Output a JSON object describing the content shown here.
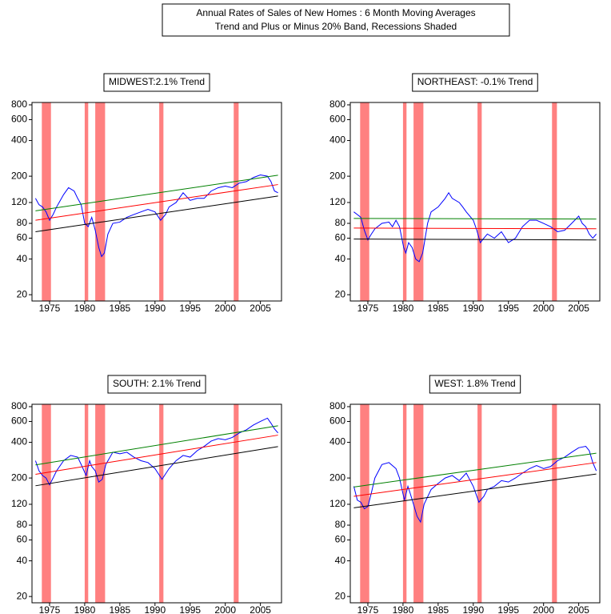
{
  "title": "Annual Rates of Sales of New Homes : 6 Month Moving Averages",
  "subtitle": "Trend and Plus or Minus 20% Band, Recessions Shaded",
  "chart_data": [
    {
      "type": "line",
      "title": "MIDWEST:2.1% Trend",
      "log_y": true,
      "xlim": [
        1972.5,
        2008
      ],
      "ylim": [
        17.7,
        838
      ],
      "xticks": [
        1975,
        1980,
        1985,
        1990,
        1995,
        2000,
        2005
      ],
      "yticks": [
        20,
        40,
        60,
        80,
        120,
        200,
        400,
        600,
        800
      ],
      "recession_color": "#ff8080",
      "recessions": [
        [
          1973.9,
          1975.2
        ],
        [
          1980.0,
          1980.5
        ],
        [
          1981.5,
          1982.9
        ],
        [
          1990.6,
          1991.2
        ],
        [
          2001.2,
          2001.9
        ]
      ],
      "series": [
        {
          "color": "#0000ff",
          "x": [
            1973,
            1973.5,
            1974,
            1974.5,
            1975,
            1975.5,
            1976,
            1977,
            1977.7,
            1978.5,
            1979,
            1979.5,
            1980,
            1980.5,
            1981,
            1981.5,
            1982,
            1982.4,
            1982.8,
            1983.3,
            1984,
            1985,
            1986,
            1987,
            1988,
            1989,
            1990,
            1990.8,
            1991.5,
            1992,
            1993,
            1994,
            1995,
            1996,
            1997,
            1998,
            1999,
            2000,
            2001,
            2002,
            2003,
            2004,
            2005,
            2006,
            2006.5,
            2007,
            2007.5
          ],
          "values": [
            130,
            115,
            110,
            100,
            85,
            95,
            110,
            140,
            160,
            150,
            130,
            115,
            80,
            75,
            90,
            70,
            50,
            42,
            45,
            65,
            80,
            82,
            90,
            95,
            100,
            105,
            100,
            85,
            95,
            110,
            120,
            145,
            125,
            130,
            130,
            150,
            160,
            165,
            160,
            175,
            180,
            195,
            205,
            200,
            180,
            150,
            145
          ]
        },
        {
          "color": "#008000",
          "x": [
            1973,
            2007.5
          ],
          "values": [
            102,
            204
          ]
        },
        {
          "color": "#ff0000",
          "x": [
            1973,
            2007.5
          ],
          "values": [
            85,
            170
          ]
        },
        {
          "color": "#000000",
          "x": [
            1973,
            2007.5
          ],
          "values": [
            68,
            136
          ]
        }
      ]
    },
    {
      "type": "line",
      "title": "NORTHEAST: -0.1% Trend",
      "log_y": true,
      "xlim": [
        1972.5,
        2008
      ],
      "ylim": [
        17.7,
        838
      ],
      "xticks": [
        1975,
        1980,
        1985,
        1990,
        1995,
        2000,
        2005
      ],
      "yticks": [
        20,
        40,
        60,
        80,
        120,
        200,
        400,
        600,
        800
      ],
      "recession_color": "#ff8080",
      "recessions": [
        [
          1973.9,
          1975.2
        ],
        [
          1980.0,
          1980.5
        ],
        [
          1981.5,
          1982.9
        ],
        [
          1990.6,
          1991.2
        ],
        [
          2001.2,
          2001.9
        ]
      ],
      "series": [
        {
          "color": "#0000ff",
          "x": [
            1973,
            1973.5,
            1974,
            1974.5,
            1975,
            1975.5,
            1976,
            1977,
            1978,
            1978.5,
            1979,
            1979.5,
            1980.1,
            1980.4,
            1980.8,
            1981.3,
            1981.8,
            1982.3,
            1982.8,
            1983.5,
            1984,
            1985,
            1986,
            1986.5,
            1987,
            1988,
            1988.5,
            1989,
            1990,
            1990.5,
            1991,
            1991.5,
            1992,
            1993,
            1994,
            1995,
            1996,
            1997,
            1998,
            1999,
            2000,
            2001,
            2002,
            2003,
            2004,
            2005,
            2005.5,
            2006,
            2006.5,
            2007,
            2007.5
          ],
          "values": [
            100,
            95,
            90,
            70,
            58,
            65,
            72,
            80,
            82,
            75,
            85,
            75,
            50,
            45,
            55,
            50,
            40,
            38,
            45,
            80,
            100,
            110,
            130,
            145,
            130,
            120,
            110,
            100,
            85,
            70,
            55,
            60,
            65,
            60,
            68,
            55,
            60,
            75,
            85,
            85,
            80,
            75,
            68,
            70,
            80,
            92,
            80,
            75,
            65,
            60,
            65
          ]
        },
        {
          "color": "#008000",
          "x": [
            1973,
            2007.5
          ],
          "values": [
            88,
            87
          ]
        },
        {
          "color": "#ff0000",
          "x": [
            1973,
            2007.5
          ],
          "values": [
            73,
            72
          ]
        },
        {
          "color": "#000000",
          "x": [
            1973,
            2007.5
          ],
          "values": [
            59,
            58
          ]
        }
      ]
    },
    {
      "type": "line",
      "title": "SOUTH: 2.1% Trend",
      "log_y": true,
      "xlim": [
        1972.5,
        2008
      ],
      "ylim": [
        17.7,
        838
      ],
      "xticks": [
        1975,
        1980,
        1985,
        1990,
        1995,
        2000,
        2005
      ],
      "yticks": [
        20,
        40,
        60,
        80,
        120,
        200,
        400,
        600,
        800
      ],
      "recession_color": "#ff8080",
      "recessions": [
        [
          1973.9,
          1975.2
        ],
        [
          1980.0,
          1980.5
        ],
        [
          1981.5,
          1982.9
        ],
        [
          1990.6,
          1991.2
        ],
        [
          2001.2,
          2001.9
        ]
      ],
      "series": [
        {
          "color": "#0000ff",
          "x": [
            1973,
            1973.5,
            1974,
            1974.5,
            1975,
            1975.5,
            1976,
            1977,
            1978,
            1979,
            1979.5,
            1980.2,
            1980.7,
            1981,
            1981.5,
            1982,
            1982.5,
            1983,
            1984,
            1985,
            1986,
            1987,
            1988,
            1989,
            1990,
            1991,
            1992,
            1993,
            1994,
            1995,
            1996,
            1997,
            1998,
            1999,
            2000,
            2001,
            2002,
            2003,
            2004,
            2005,
            2006,
            2006.5,
            2007,
            2007.5
          ],
          "values": [
            280,
            230,
            210,
            200,
            175,
            200,
            230,
            280,
            310,
            300,
            260,
            210,
            280,
            250,
            230,
            185,
            195,
            260,
            330,
            320,
            330,
            300,
            280,
            270,
            240,
            195,
            240,
            280,
            310,
            300,
            340,
            370,
            410,
            430,
            420,
            440,
            480,
            510,
            560,
            600,
            640,
            580,
            520,
            480
          ]
        },
        {
          "color": "#008000",
          "x": [
            1973,
            2007.5
          ],
          "values": [
            258,
            552
          ]
        },
        {
          "color": "#ff0000",
          "x": [
            1973,
            2007.5
          ],
          "values": [
            215,
            460
          ]
        },
        {
          "color": "#000000",
          "x": [
            1973,
            2007.5
          ],
          "values": [
            172,
            368
          ]
        }
      ]
    },
    {
      "type": "line",
      "title": "WEST: 1.8% Trend",
      "log_y": true,
      "xlim": [
        1972.5,
        2008
      ],
      "ylim": [
        17.7,
        838
      ],
      "xticks": [
        1975,
        1980,
        1985,
        1990,
        1995,
        2000,
        2005
      ],
      "yticks": [
        20,
        40,
        60,
        80,
        120,
        200,
        400,
        600,
        800
      ],
      "recession_color": "#ff8080",
      "recessions": [
        [
          1973.9,
          1975.2
        ],
        [
          1980.0,
          1980.5
        ],
        [
          1981.5,
          1982.9
        ],
        [
          1990.6,
          1991.2
        ],
        [
          2001.2,
          2001.9
        ]
      ],
      "series": [
        {
          "color": "#0000ff",
          "x": [
            1973,
            1973.5,
            1974,
            1974.5,
            1975,
            1975.5,
            1976,
            1977,
            1978,
            1979,
            1979.5,
            1980.2,
            1980.7,
            1981,
            1981.5,
            1982,
            1982.5,
            1983,
            1984,
            1985,
            1986,
            1987,
            1988,
            1989,
            1990,
            1990.8,
            1991.5,
            1992,
            1993,
            1994,
            1995,
            1996,
            1997,
            1998,
            1999,
            2000,
            2001,
            2002,
            2003,
            2004,
            2005,
            2006,
            2006.5,
            2007,
            2007.5
          ],
          "values": [
            170,
            130,
            125,
            110,
            115,
            150,
            200,
            260,
            270,
            240,
            200,
            130,
            170,
            150,
            120,
            95,
            85,
            120,
            160,
            180,
            200,
            210,
            190,
            220,
            170,
            125,
            140,
            160,
            170,
            190,
            185,
            200,
            220,
            240,
            255,
            240,
            250,
            280,
            300,
            330,
            360,
            370,
            340,
            270,
            230
          ]
        },
        {
          "color": "#008000",
          "x": [
            1973,
            2007.5
          ],
          "values": [
            168,
            324
          ]
        },
        {
          "color": "#ff0000",
          "x": [
            1973,
            2007.5
          ],
          "values": [
            140,
            270
          ]
        },
        {
          "color": "#000000",
          "x": [
            1973,
            2007.5
          ],
          "values": [
            112,
            216
          ]
        }
      ]
    }
  ]
}
